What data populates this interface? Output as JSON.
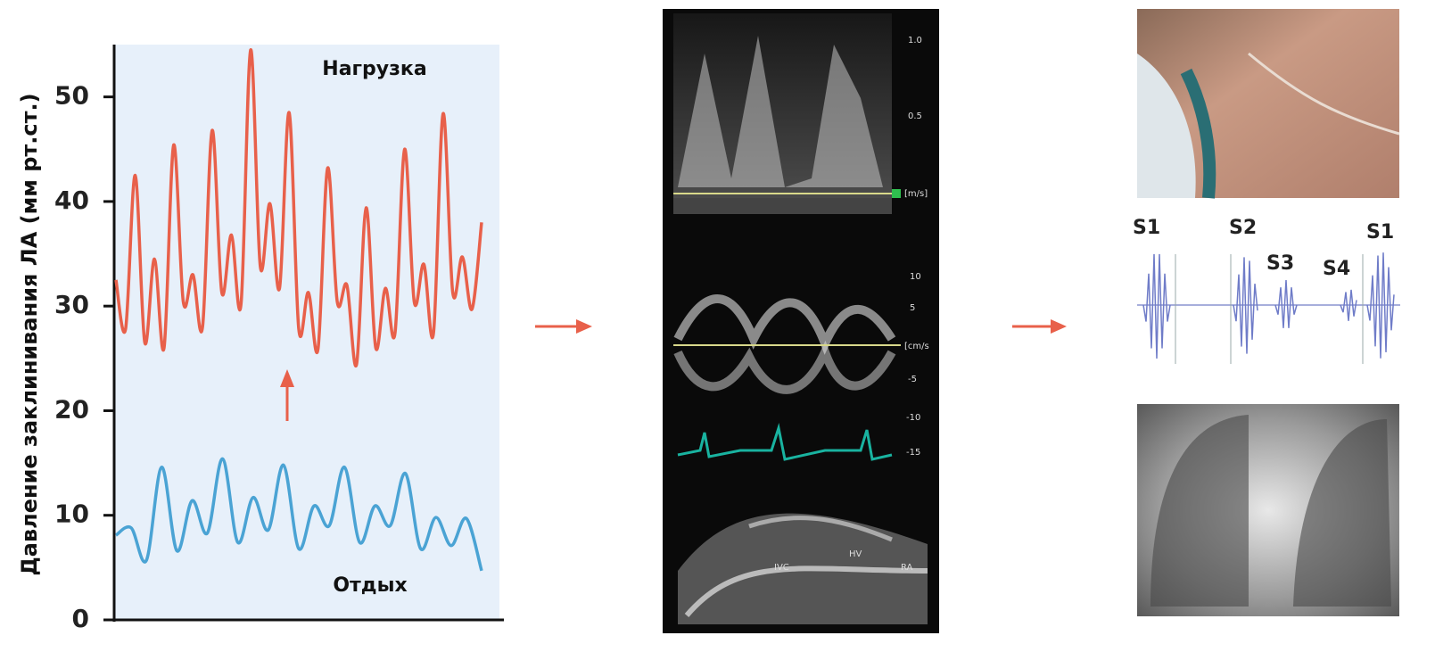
{
  "chart_data": {
    "type": "line",
    "y_label": "Давление заклинивания ЛА (мм рт.ст.)",
    "ylim": [
      0,
      55
    ],
    "yticks": [
      0,
      10,
      20,
      30,
      40,
      50
    ],
    "series": [
      {
        "name": "Нагрузка",
        "color": "#e8604a",
        "values": [
          32.5,
          27.8,
          42.5,
          26.5,
          34.5,
          26,
          45.4,
          30.4,
          33,
          28,
          46.8,
          31.3,
          36.8,
          30.2,
          54.5,
          33.8,
          39.8,
          31.7,
          48.5,
          27.8,
          31.3,
          25.9,
          43.2,
          30.4,
          32,
          24.4,
          39.4,
          26,
          31.7,
          27.4,
          45,
          30.4,
          34,
          27.4,
          48.4,
          31.3,
          34.7,
          29.7,
          38
        ]
      },
      {
        "name": "Отдых",
        "color": "#4aa3d4",
        "values": [
          8.1,
          8.8,
          5.7,
          14.6,
          6.6,
          11.4,
          8.3,
          15.4,
          7.4,
          11.7,
          8.6,
          14.8,
          6.8,
          10.9,
          9,
          14.6,
          7.4,
          10.9,
          9,
          14,
          6.8,
          9.8,
          7.1,
          9.7,
          4.7
        ]
      }
    ]
  },
  "panels": {
    "echo": {
      "velocity_ticks": [
        "1.0",
        "0.5"
      ],
      "velocity_unit": "[m/s]",
      "tissue_ticks": [
        "10",
        "5",
        "-5",
        "-10",
        "-15"
      ],
      "tissue_unit": "[cm/s",
      "labels": [
        "IVC",
        "HV",
        "RA"
      ]
    },
    "phono": {
      "labels": [
        "S1",
        "S2",
        "S3",
        "S4",
        "S1"
      ]
    }
  }
}
